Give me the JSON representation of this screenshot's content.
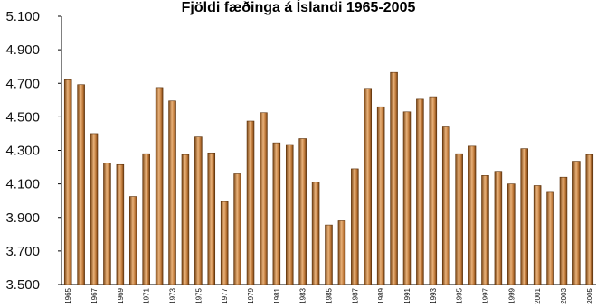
{
  "chart_data": {
    "type": "bar",
    "title": "Fjöldi fæðinga á Íslandi 1965-2005",
    "xlabel": "",
    "ylabel": "",
    "ylim": [
      3500,
      5100
    ],
    "yticks": [
      "5.100",
      "4.900",
      "4.700",
      "4.500",
      "4.300",
      "4.100",
      "3.900",
      "3.700",
      "3.500"
    ],
    "grid": false,
    "legend": "none",
    "bar_color": "#c07a3a",
    "x_tick_labels": [
      "1965",
      "1967",
      "1969",
      "1971",
      "1973",
      "1975",
      "1977",
      "1979",
      "1981",
      "1983",
      "1985",
      "1987",
      "1989",
      "1991",
      "1993",
      "1995",
      "1997",
      "1999",
      "2001",
      "2003",
      "2005"
    ],
    "categories": [
      "1965",
      "1966",
      "1967",
      "1968",
      "1969",
      "1970",
      "1971",
      "1972",
      "1973",
      "1974",
      "1975",
      "1976",
      "1977",
      "1978",
      "1979",
      "1980",
      "1981",
      "1982",
      "1983",
      "1984",
      "1985",
      "1986",
      "1987",
      "1988",
      "1989",
      "1990",
      "1991",
      "1992",
      "1993",
      "1994",
      "1995",
      "1996",
      "1997",
      "1998",
      "1999",
      "2000",
      "2001",
      "2002",
      "2003",
      "2004",
      "2005"
    ],
    "values": [
      4721,
      4692,
      4400,
      4225,
      4215,
      4025,
      4280,
      4675,
      4595,
      4275,
      4380,
      4285,
      3995,
      4160,
      4475,
      4525,
      4345,
      4335,
      4370,
      4110,
      3855,
      3880,
      4190,
      4670,
      4560,
      4765,
      4530,
      4605,
      4620,
      4440,
      4280,
      4325,
      4150,
      4175,
      4100,
      4310,
      4090,
      4050,
      4140,
      4235,
      4275
    ]
  }
}
